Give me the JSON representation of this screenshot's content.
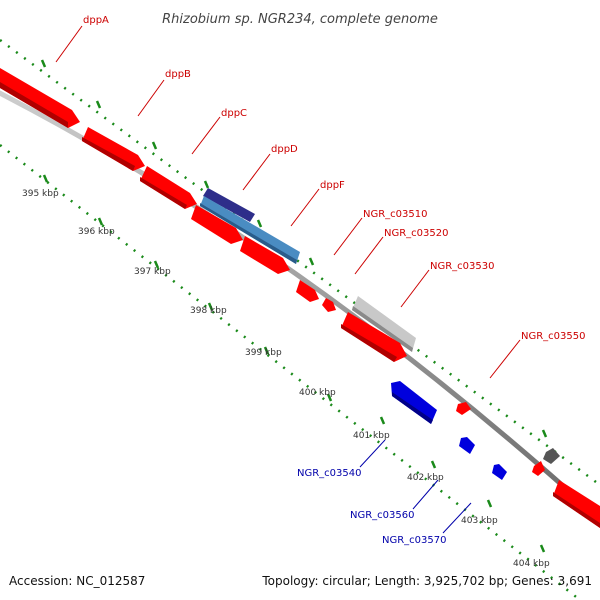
{
  "title": "Rhizobium sp. NGR234, complete genome",
  "footer": {
    "accession": "Accession: NC_012587",
    "topology": "Topology: circular; Length: 3,925,702 bp; Genes: 3,691"
  },
  "ticks": [
    "395 kbp",
    "396 kbp",
    "397 kbp",
    "398 kbp",
    "399 kbp",
    "400 kbp",
    "401 kbp",
    "402 kbp",
    "403 kbp",
    "404 kbp"
  ],
  "genes_forward": [
    {
      "name": "dppA",
      "color": "#ff0000"
    },
    {
      "name": "dppB",
      "color": "#ff0000"
    },
    {
      "name": "dppC",
      "color": "#ff0000"
    },
    {
      "name": "dppD",
      "color": "#2e2e8a"
    },
    {
      "name": "dppF",
      "color": "#4a8cc2"
    },
    {
      "name": "NGR_c03510",
      "color": "#ff0000"
    },
    {
      "name": "NGR_c03520",
      "color": "#ff0000"
    },
    {
      "name": "NGR_c03530",
      "color": "#c8c8c8"
    },
    {
      "name": "NGR_c03550",
      "color": "#ff0000"
    }
  ],
  "genes_reverse": [
    {
      "name": "NGR_c03540",
      "color": "#0000dd"
    },
    {
      "name": "NGR_c03560",
      "color": "#0000dd"
    },
    {
      "name": "NGR_c03570",
      "color": "#0000dd"
    }
  ],
  "colors": {
    "forward_label": "#cc0000",
    "reverse_label": "#0000aa",
    "backbone": "#888888",
    "dotted_guide": "#1a8a1a"
  }
}
